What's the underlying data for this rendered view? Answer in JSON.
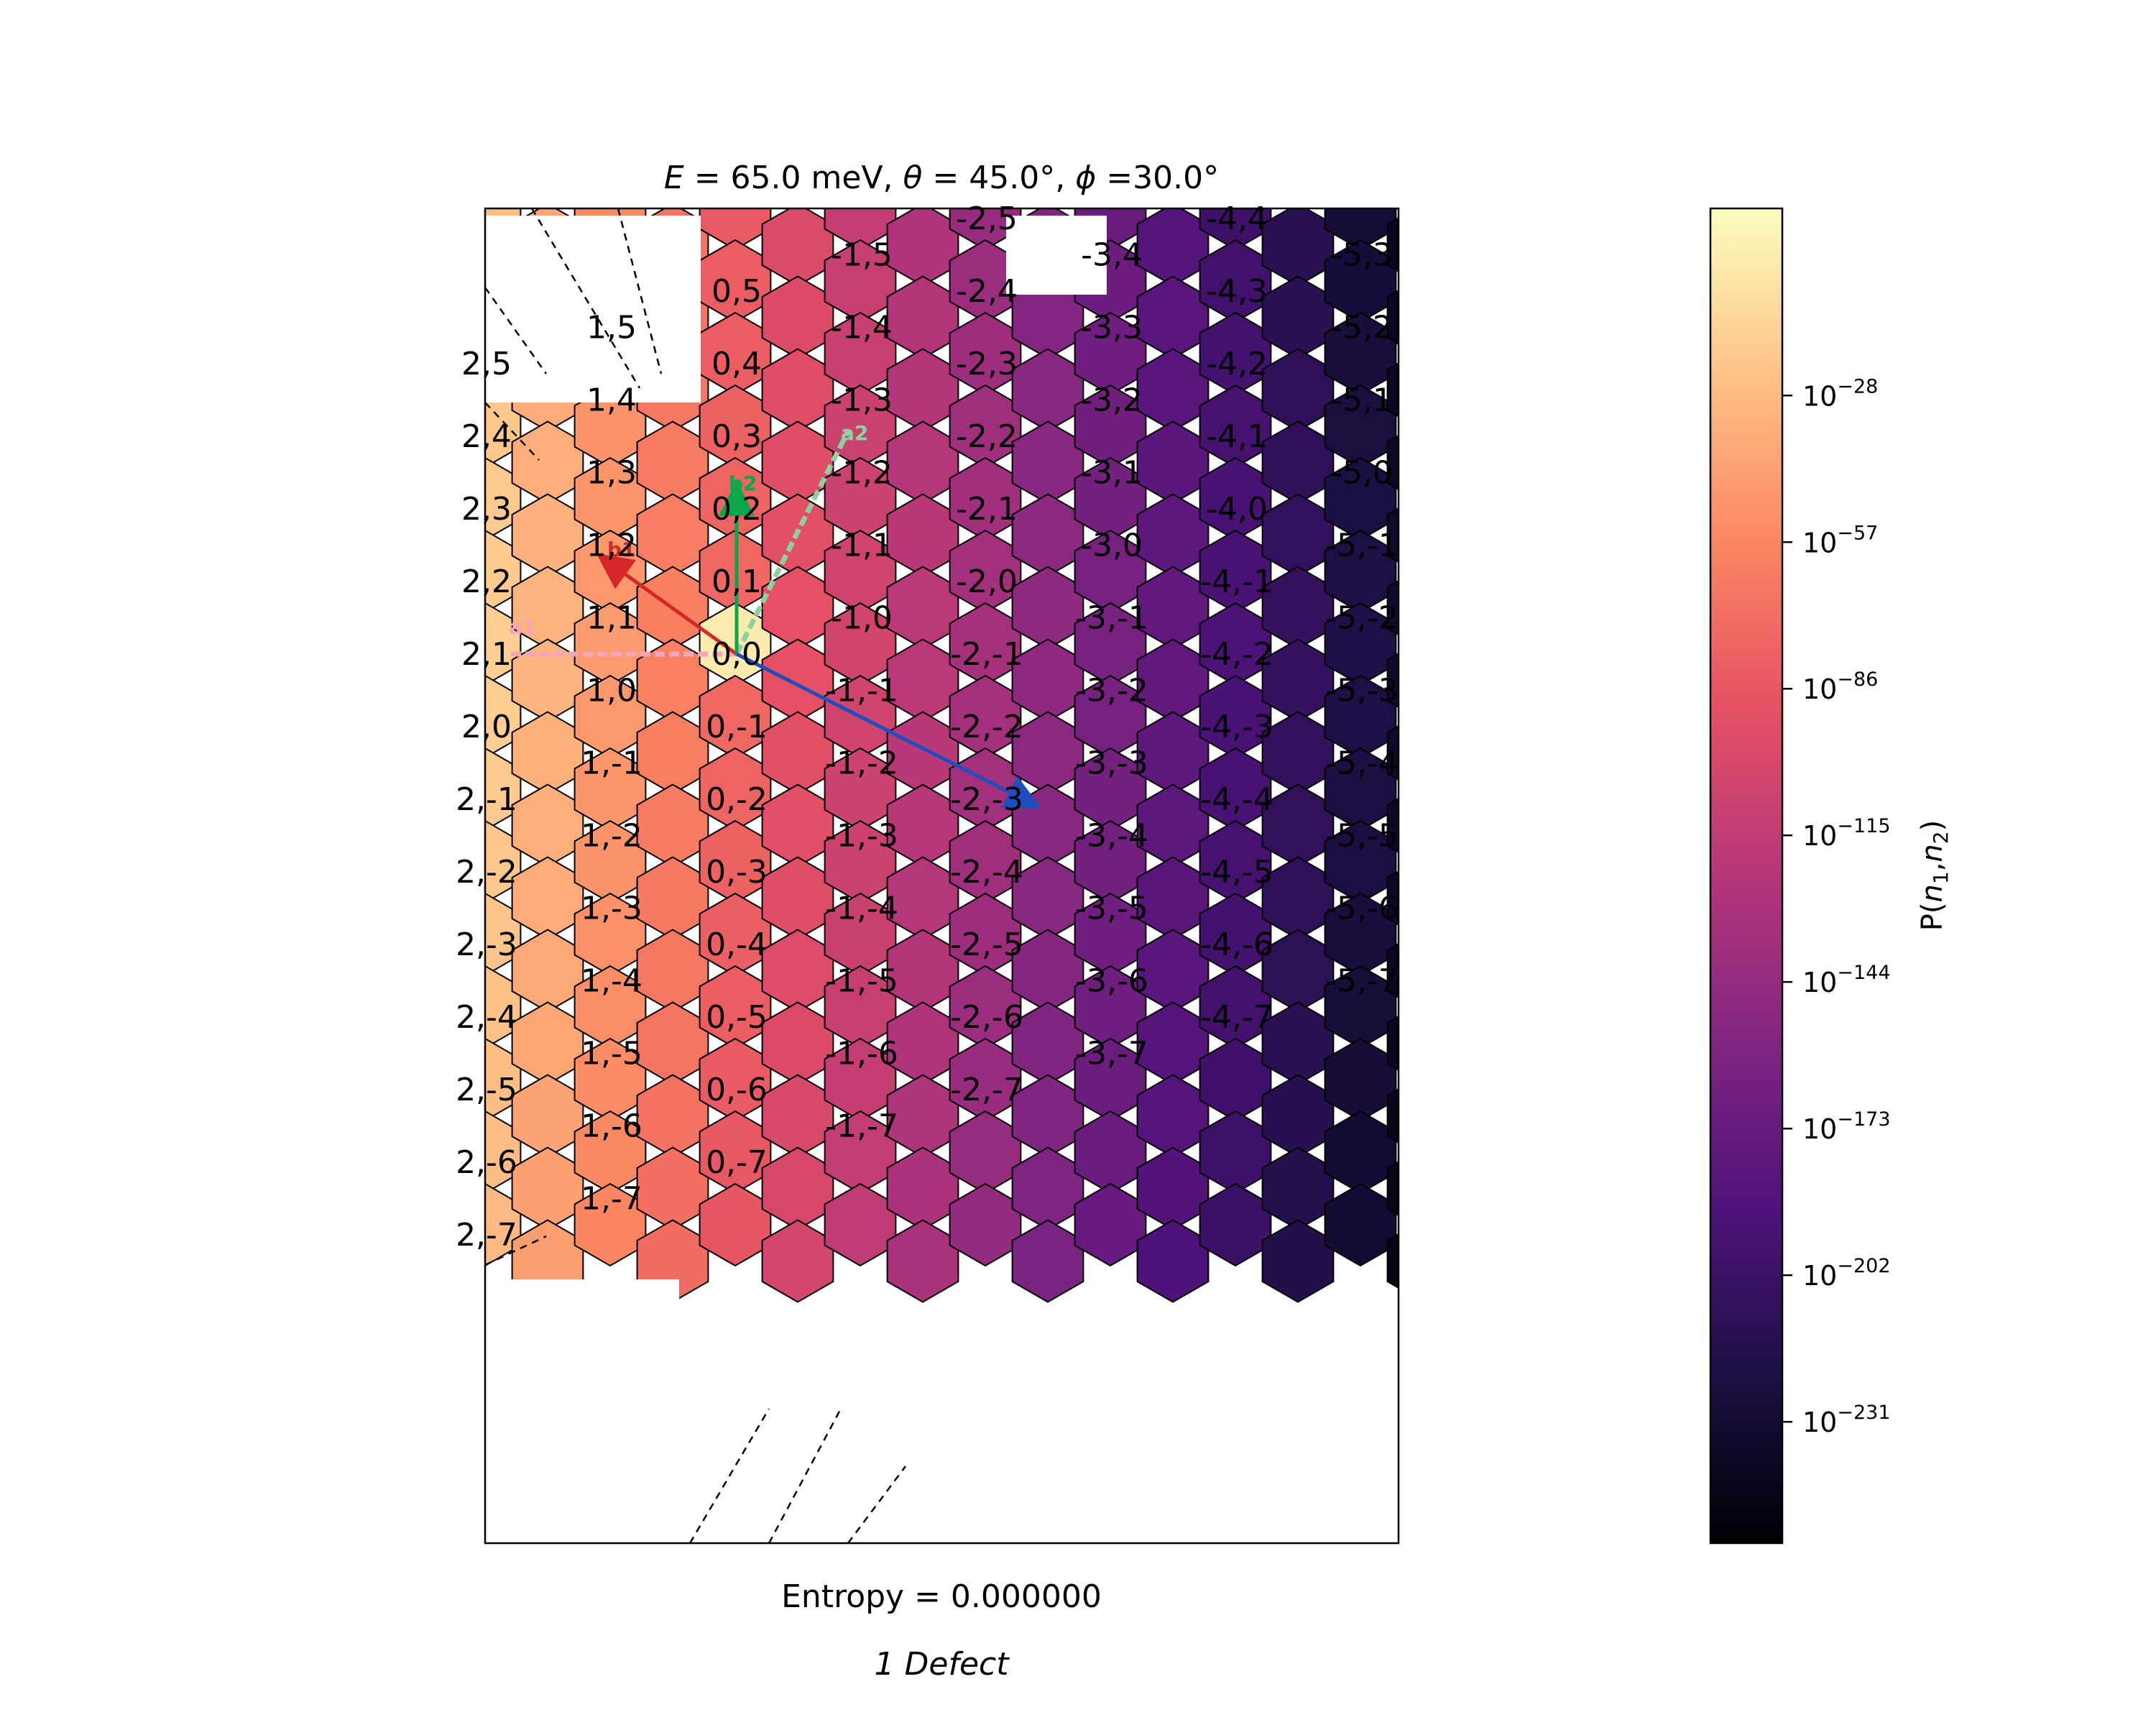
{
  "figure": {
    "title_parts": {
      "e_sym": "E",
      "e_val": " = 65.0 meV, ",
      "theta_sym": "θ",
      "theta_val": " = 45.0°, ",
      "phi_sym": "ϕ",
      "phi_val": " =30.0°"
    },
    "xlabel": "Entropy = 0.000000",
    "caption": "1 Defect"
  },
  "colors": {
    "cell_edge": "#000000",
    "vector_b1": "#d62728",
    "vector_b2": "#0aa64a",
    "vector_a1": "#f4a6b8",
    "vector_a2": "#8fd19e",
    "vector_k": "#1f4fbf",
    "colormap": "magma"
  },
  "chart_data": {
    "type": "heatmap",
    "description_units": "log10 of P(n1,n2)",
    "lattice_labels": {
      "n1_range": [
        -5,
        2
      ],
      "n2_range": [
        -7,
        5
      ]
    },
    "log10_p_model": {
      "origin_value": -1,
      "n1_zero_band": -75,
      "per_step_n1": -29,
      "per_step_n2": -1.5
    },
    "missing_cells_note": "",
    "vectors": [
      {
        "name": "b1",
        "label": "b1"
      },
      {
        "name": "b2",
        "label": "b2"
      },
      {
        "name": "a1",
        "label": "a1"
      },
      {
        "name": "a2",
        "label": "a2"
      },
      {
        "name": "k",
        "label": ""
      }
    ],
    "colorbar": {
      "label_prefix": "P(",
      "label_n1": "n",
      "label_sub1": "1",
      "label_comma": ",",
      "label_n2": "n",
      "label_sub2": "2",
      "label_suffix": ")",
      "scale": "log",
      "range_log10": [
        -255,
        9
      ],
      "ticks": [
        {
          "base": "10",
          "exp": "−28",
          "value": -28
        },
        {
          "base": "10",
          "exp": "−57",
          "value": -57
        },
        {
          "base": "10",
          "exp": "−86",
          "value": -86
        },
        {
          "base": "10",
          "exp": "−115",
          "value": -115
        },
        {
          "base": "10",
          "exp": "−144",
          "value": -144
        },
        {
          "base": "10",
          "exp": "−173",
          "value": -173
        },
        {
          "base": "10",
          "exp": "−202",
          "value": -202
        },
        {
          "base": "10",
          "exp": "−231",
          "value": -231
        }
      ]
    }
  }
}
